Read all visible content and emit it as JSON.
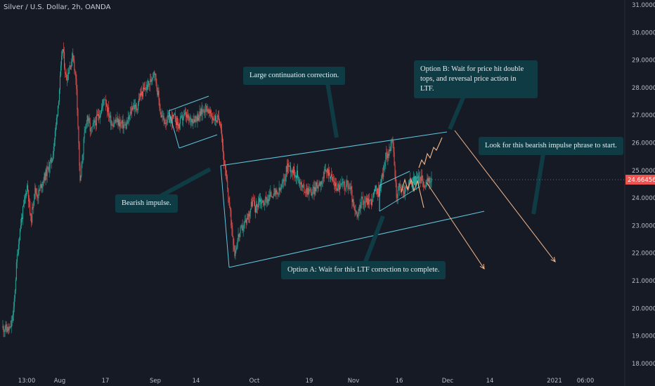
{
  "chart_data": {
    "type": "candlestick",
    "title": "Silver / U.S. Dollar, 2h, OANDA",
    "y_axis_side": "right",
    "ylim": [
      18,
      31
    ],
    "y_ticks": [
      "31.00000",
      "30.00000",
      "29.00000",
      "28.00000",
      "27.00000",
      "26.00000",
      "25.00000",
      "24.00000",
      "23.00000",
      "22.00000",
      "21.00000",
      "20.00000",
      "19.00000",
      "18.00000"
    ],
    "x_ticks": [
      "13:00",
      "Aug",
      "17",
      "Sep",
      "14",
      "Oct",
      "19",
      "Nov",
      "16",
      "Dec",
      "14",
      "2021",
      "06:00"
    ],
    "current_price": "24.66456",
    "price_path": [
      [
        "Jul 20",
        19.3
      ],
      [
        "Jul 22",
        19.2
      ],
      [
        "Jul 23",
        19.8
      ],
      [
        "Jul 24",
        21.8
      ],
      [
        "Jul 25",
        23.0
      ],
      [
        "Jul 27",
        24.5
      ],
      [
        "Jul 28",
        23.1
      ],
      [
        "Jul 29",
        24.3
      ],
      [
        "Jul 30",
        24.1
      ],
      [
        "Jul 31",
        24.5
      ],
      [
        "Aug 3",
        25.4
      ],
      [
        "Aug 4",
        26.5
      ],
      [
        "Aug 5",
        27.8
      ],
      [
        "Aug 6",
        29.5
      ],
      [
        "Aug 7",
        28.3
      ],
      [
        "Aug 9",
        29.2
      ],
      [
        "Aug 10",
        28.0
      ],
      [
        "Aug 11",
        24.5
      ],
      [
        "Aug 12",
        26.0
      ],
      [
        "Aug 13",
        27.0
      ],
      [
        "Aug 14",
        26.4
      ],
      [
        "Aug 17",
        27.2
      ],
      [
        "Aug 18",
        27.7
      ],
      [
        "Aug 19",
        27.1
      ],
      [
        "Aug 20",
        26.7
      ],
      [
        "Aug 21",
        26.8
      ],
      [
        "Aug 24",
        26.6
      ],
      [
        "Aug 25",
        26.9
      ],
      [
        "Aug 26",
        27.4
      ],
      [
        "Aug 27",
        27.2
      ],
      [
        "Aug 28",
        27.7
      ],
      [
        "Aug 31",
        28.2
      ],
      [
        "Sep 1",
        28.7
      ],
      [
        "Sep 2",
        27.9
      ],
      [
        "Sep 3",
        27.0
      ],
      [
        "Sep 4",
        26.8
      ],
      [
        "Sep 7",
        26.9
      ],
      [
        "Sep 8",
        26.6
      ],
      [
        "Sep 9",
        26.9
      ],
      [
        "Sep 10",
        27.0
      ],
      [
        "Sep 11",
        26.8
      ],
      [
        "Sep 14",
        27.0
      ],
      [
        "Sep 15",
        27.2
      ],
      [
        "Sep 16",
        27.3
      ],
      [
        "Sep 17",
        27.0
      ],
      [
        "Sep 18",
        26.9
      ],
      [
        "Sep 20",
        26.8
      ],
      [
        "Sep 21",
        25.2
      ],
      [
        "Sep 22",
        24.3
      ],
      [
        "Sep 23",
        23.1
      ],
      [
        "Sep 24",
        22.0
      ],
      [
        "Sep 25",
        22.6
      ],
      [
        "Sep 28",
        23.4
      ],
      [
        "Sep 29",
        23.9
      ],
      [
        "Sep 30",
        23.6
      ],
      [
        "Oct 1",
        24.0
      ],
      [
        "Oct 2",
        23.8
      ],
      [
        "Oct 5",
        24.2
      ],
      [
        "Oct 6",
        24.1
      ],
      [
        "Oct 7",
        24.3
      ],
      [
        "Oct 8",
        24.6
      ],
      [
        "Oct 9",
        25.2
      ],
      [
        "Oct 12",
        24.8
      ],
      [
        "Oct 13",
        24.4
      ],
      [
        "Oct 14",
        24.3
      ],
      [
        "Oct 15",
        24.3
      ],
      [
        "Oct 16",
        24.2
      ],
      [
        "Oct 19",
        24.7
      ],
      [
        "Oct 20",
        25.0
      ],
      [
        "Oct 21",
        24.9
      ],
      [
        "Oct 22",
        24.6
      ],
      [
        "Oct 23",
        24.4
      ],
      [
        "Oct 26",
        24.5
      ],
      [
        "Oct 27",
        24.3
      ],
      [
        "Oct 28",
        23.5
      ],
      [
        "Oct 29",
        23.3
      ],
      [
        "Oct 30",
        23.9
      ],
      [
        "Nov 2",
        23.9
      ],
      [
        "Nov 3",
        24.3
      ],
      [
        "Nov 4",
        24.2
      ],
      [
        "Nov 5",
        24.8
      ],
      [
        "Nov 6",
        25.5
      ],
      [
        "Nov 8",
        26.0
      ],
      [
        "Nov 9",
        24.1
      ],
      [
        "Nov 10",
        24.4
      ],
      [
        "Nov 11",
        24.2
      ],
      [
        "Nov 12",
        24.4
      ],
      [
        "Nov 13",
        24.6
      ],
      [
        "Nov 16",
        24.7
      ],
      [
        "Nov 17",
        24.5
      ],
      [
        "Nov 18",
        24.6
      ],
      [
        "Nov 19",
        24.66
      ]
    ],
    "annotations": [
      "Large continuation correction.",
      "Option B: Wait for price hit double tops, and reversal price action in LTF.",
      "Look for this bearish impulse phrase to start.",
      "Bearish impulse.",
      "Option A: Wait for this LTF correction to complete."
    ],
    "colors": {
      "background": "#161a24",
      "bullish": "#26a69a",
      "bearish": "#ef5350",
      "channel": "#5fc4dc",
      "projection": "#f5b88e",
      "callout": "#0f3b44",
      "price_badge": "#ef5350"
    }
  }
}
